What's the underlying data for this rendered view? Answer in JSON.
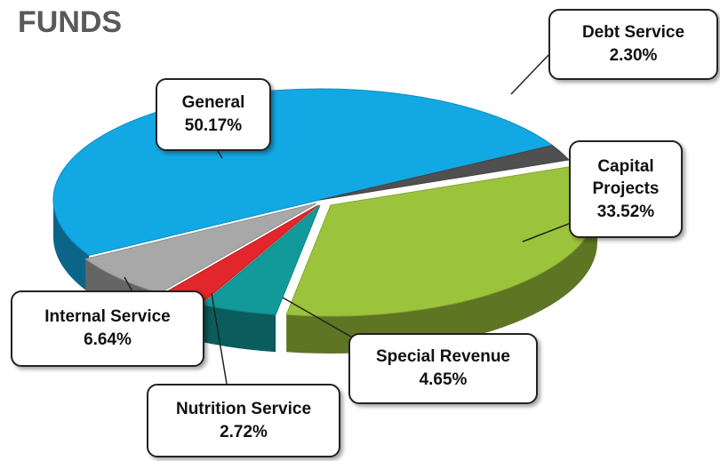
{
  "chart_data": {
    "type": "pie",
    "title": "FUNDS",
    "categories": [
      "General",
      "Debt Service",
      "Capital Projects",
      "Special Revenue",
      "Nutrition Service",
      "Internal Service"
    ],
    "values": [
      50.17,
      2.3,
      33.52,
      4.65,
      2.72,
      6.64
    ],
    "value_labels": [
      "50.17%",
      "2.30%",
      "33.52%",
      "4.65%",
      "2.72%",
      "6.64%"
    ],
    "colors": [
      "#12a8e3",
      "#505050",
      "#9cc33c",
      "#129a9a",
      "#e2262c",
      "#a8a8a8"
    ]
  }
}
